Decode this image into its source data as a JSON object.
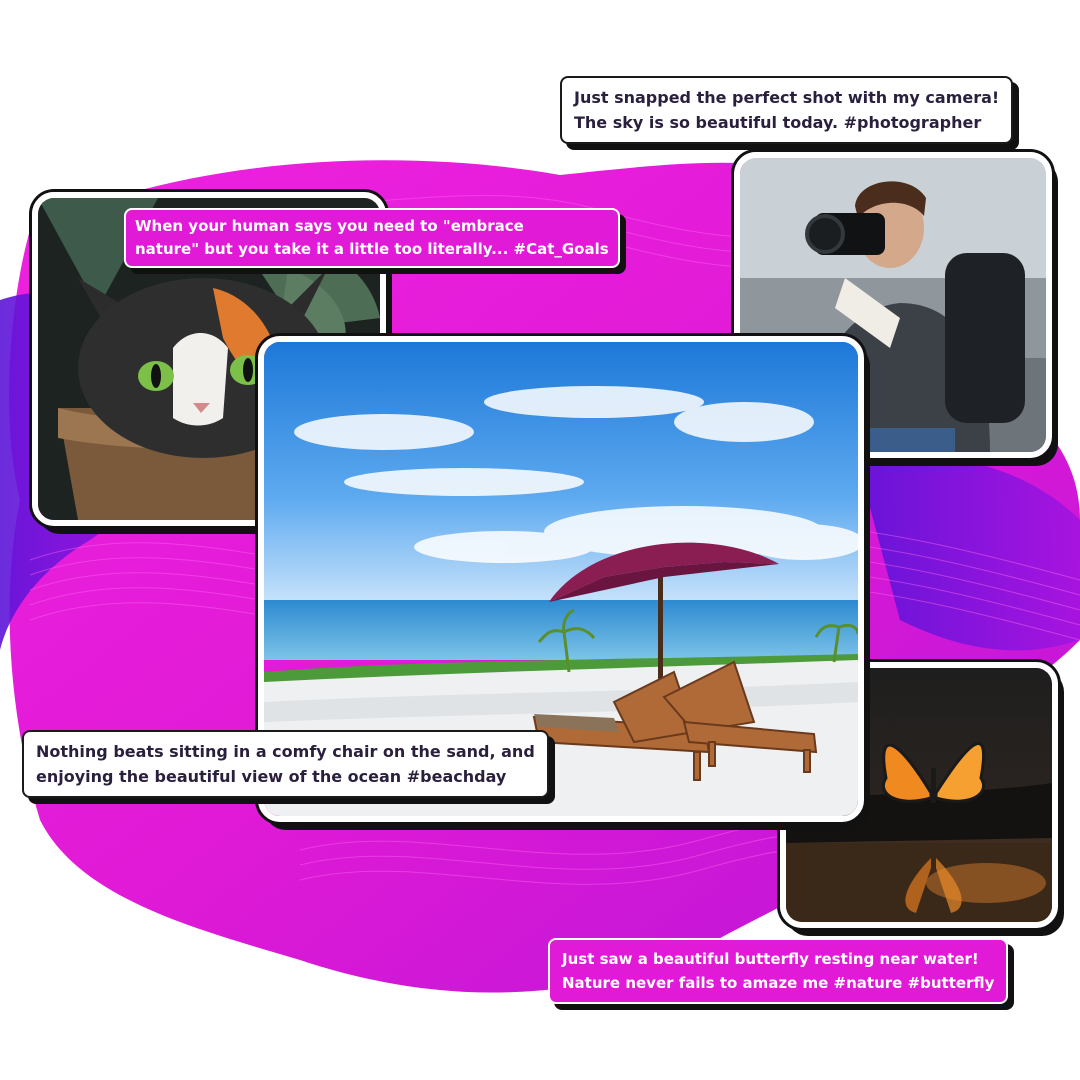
{
  "posts": {
    "photographer": {
      "caption_lines": [
        "Just snapped the perfect shot with my camera!",
        "The sky is so beautiful today. #photographer"
      ]
    },
    "cat": {
      "caption_lines": [
        "When your human says you need to \"embrace",
        "nature\" but you take it a little too literally... #Cat_Goals"
      ]
    },
    "beach": {
      "caption_lines": [
        "Nothing beats sitting in a comfy chair on the sand, and",
        "enjoying the beautiful view of the ocean #beachday"
      ]
    },
    "butterfly": {
      "caption_lines": [
        "Just saw a beautiful butterfly resting near water!",
        "Nature never fails to amaze me #nature #butterfly"
      ]
    }
  },
  "colors": {
    "accent_magenta": "#e01ad6",
    "accent_purple": "#7a1de0",
    "caption_text": "#2a1f3d"
  },
  "images": {
    "cat": "calico-cat-in-pot",
    "photographer": "man-with-dslr-camera",
    "beach": "beach-umbrella-loungers",
    "butterfly": "orange-butterfly-over-water"
  }
}
